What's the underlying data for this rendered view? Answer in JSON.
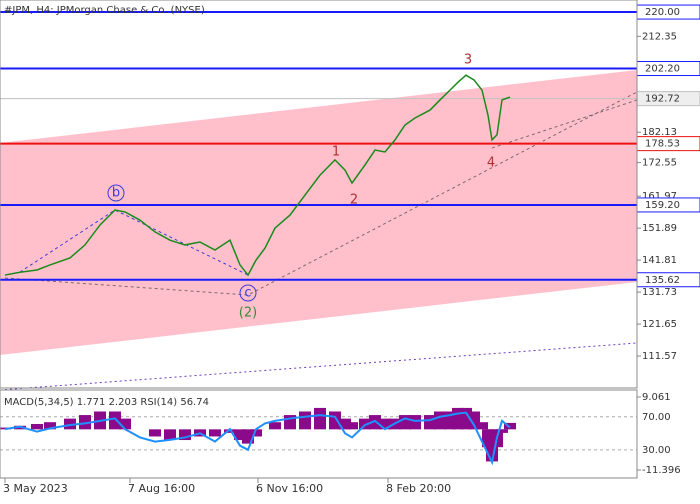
{
  "chart_data": [
    {
      "type": "line",
      "title": "#JPM, H4:  JPMorgan Chase & Co. (NYSE)",
      "x": [
        5,
        20,
        37,
        50,
        70,
        85,
        100,
        115,
        125,
        140,
        155,
        170,
        185,
        200,
        215,
        230,
        240,
        248,
        256,
        265,
        275,
        290,
        305,
        320,
        335,
        345,
        352,
        365,
        375,
        385,
        395,
        405,
        415,
        430,
        440,
        450,
        458,
        466,
        474,
        482,
        488,
        492,
        497,
        502,
        510
      ],
      "series": [
        {
          "name": "JPM",
          "color": "#1b8a1b",
          "values": [
            137.1,
            138,
            138.7,
            140.3,
            142.5,
            146.6,
            152.9,
            157.6,
            157,
            154.4,
            150.7,
            148.1,
            146.6,
            147.5,
            145,
            148.1,
            140.3,
            137.1,
            141.8,
            145.6,
            151.9,
            156,
            162.3,
            168.6,
            173.4,
            170.2,
            166.1,
            171.8,
            176.5,
            175.9,
            179.7,
            184.4,
            186.6,
            189.1,
            192.3,
            195.4,
            197.9,
            200.1,
            198.6,
            195.4,
            187.5,
            179.7,
            181.3,
            192.3,
            193.2
          ]
        }
      ],
      "xlim": [
        0,
        637
      ],
      "xticks": [
        {
          "value": 5,
          "label": "3 May 2023"
        },
        {
          "value": 130,
          "label": "7 Aug 16:00"
        },
        {
          "value": 258,
          "label": "6 Nov 16:00"
        },
        {
          "value": 388,
          "label": "8 Feb 20:00"
        }
      ],
      "ylim": [
        101.5,
        223.8
      ],
      "yticks": [
        212.35,
        182.13,
        172.55,
        161.97,
        151.89,
        141.81,
        131.73,
        121.65,
        111.57
      ],
      "levels": [
        {
          "value": 220,
          "label": "220.00",
          "color": "#1a1aff"
        },
        {
          "value": 202.2,
          "label": "202.20",
          "color": "#1a1aff"
        },
        {
          "value": 192.72,
          "label": "192.72",
          "color": "#c0c0c0"
        },
        {
          "value": 178.53,
          "label": "178.53",
          "color": "#ee1111"
        },
        {
          "value": 159.2,
          "label": "159.20",
          "color": "#1a1aff"
        },
        {
          "value": 135.62,
          "label": "135.62",
          "color": "#1a1aff"
        }
      ],
      "annotations": [
        "3",
        "1",
        "2",
        "4",
        "b",
        "c",
        "(2)"
      ]
    },
    {
      "type": "bar",
      "title": "MACD(5,34,5) 1.771 2.203 RSI(14) 56.74",
      "x": [
        5,
        20,
        37,
        50,
        70,
        85,
        100,
        115,
        125,
        140,
        155,
        170,
        185,
        200,
        215,
        230,
        240,
        248,
        256,
        265,
        275,
        290,
        305,
        320,
        335,
        345,
        352,
        365,
        375,
        385,
        395,
        405,
        415,
        430,
        440,
        450,
        458,
        466,
        474,
        482,
        488,
        492,
        497,
        502,
        510
      ],
      "series": [
        {
          "name": "MACD",
          "color": "#8b0a8b",
          "values": [
            0.5,
            1,
            1.5,
            2,
            3,
            4,
            5,
            5,
            3,
            0,
            -2,
            -3,
            -3,
            -2,
            -2,
            -1,
            -3,
            -4,
            -2,
            0,
            2,
            4,
            5,
            6,
            5,
            3,
            2,
            3,
            4,
            3,
            3,
            4,
            4,
            4,
            5,
            5,
            6,
            6,
            5,
            2,
            -5,
            -9,
            -5,
            -1,
            1.8
          ]
        },
        {
          "name": "RSI",
          "color": "#1e90ff",
          "axis": "y2",
          "values": [
            55,
            58,
            52,
            56,
            60,
            62,
            65,
            68,
            55,
            45,
            40,
            42,
            45,
            50,
            40,
            55,
            35,
            30,
            55,
            62,
            65,
            68,
            70,
            72,
            70,
            50,
            45,
            60,
            65,
            55,
            62,
            68,
            65,
            66,
            70,
            72,
            74,
            75,
            60,
            40,
            25,
            15,
            45,
            65,
            57
          ]
        }
      ],
      "xlim": [
        0,
        637
      ],
      "ylim": [
        -11.396,
        9.061
      ],
      "yticks": [
        9.061,
        -11.396
      ],
      "y2lim": [
        0,
        100
      ],
      "y2ticks": [
        {
          "value": 70,
          "label": "70.00"
        },
        {
          "value": 30,
          "label": "30.00"
        }
      ]
    }
  ]
}
